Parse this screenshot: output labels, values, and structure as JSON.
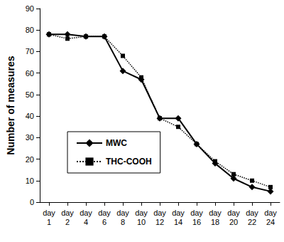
{
  "chart_data": {
    "type": "line",
    "y_label": "Number of measures",
    "categories": [
      "day 1",
      "day 2",
      "day 4",
      "day 6",
      "day 8",
      "day 10",
      "day 12",
      "day 14",
      "day 16",
      "day 18",
      "day 20",
      "day 22",
      "day 24"
    ],
    "series": [
      {
        "name": "MWC",
        "color": "#000000",
        "marker": "diamond",
        "line_style": "solid",
        "values": [
          78,
          78,
          77,
          77,
          61,
          57,
          39,
          39,
          27,
          18,
          11,
          7,
          5
        ]
      },
      {
        "name": "THC-COOH",
        "color": "#000000",
        "marker": "square",
        "line_style": "dotted",
        "values": [
          78,
          76,
          77,
          77,
          68,
          58,
          39,
          35,
          27,
          19,
          13,
          10,
          7
        ]
      }
    ],
    "ylim": [
      0,
      90
    ],
    "yticks": [
      0,
      10,
      20,
      30,
      40,
      50,
      60,
      70,
      80,
      90
    ],
    "grid": false,
    "legend": "left"
  }
}
